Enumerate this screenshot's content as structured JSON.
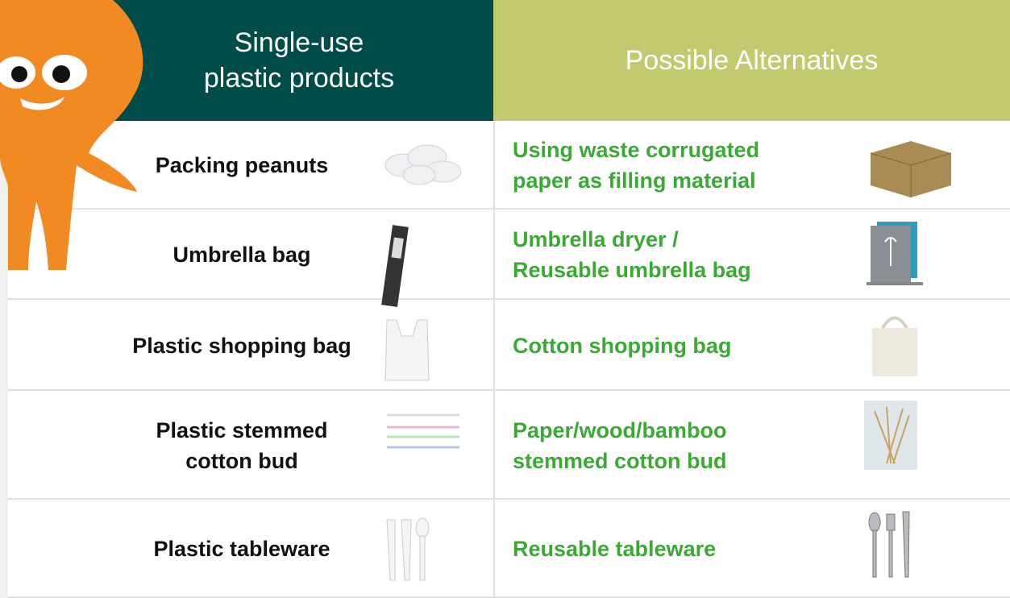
{
  "header": {
    "left": [
      "Single-use",
      "plastic products"
    ],
    "right": "Possible Alternatives"
  },
  "rows": [
    {
      "product": [
        "Packing peanuts"
      ],
      "alternative": [
        "Using waste corrugated",
        "paper as filling material"
      ]
    },
    {
      "product": [
        "Umbrella bag"
      ],
      "alternative": [
        "Umbrella dryer /",
        "Reusable umbrella bag"
      ]
    },
    {
      "product": [
        "Plastic shopping bag"
      ],
      "alternative": [
        "Cotton shopping bag"
      ]
    },
    {
      "product": [
        "Plastic stemmed",
        "cotton bud"
      ],
      "alternative": [
        "Paper/wood/bamboo",
        "stemmed cotton bud"
      ]
    },
    {
      "product": [
        "Plastic tableware"
      ],
      "alternative": [
        "Reusable tableware"
      ]
    }
  ]
}
